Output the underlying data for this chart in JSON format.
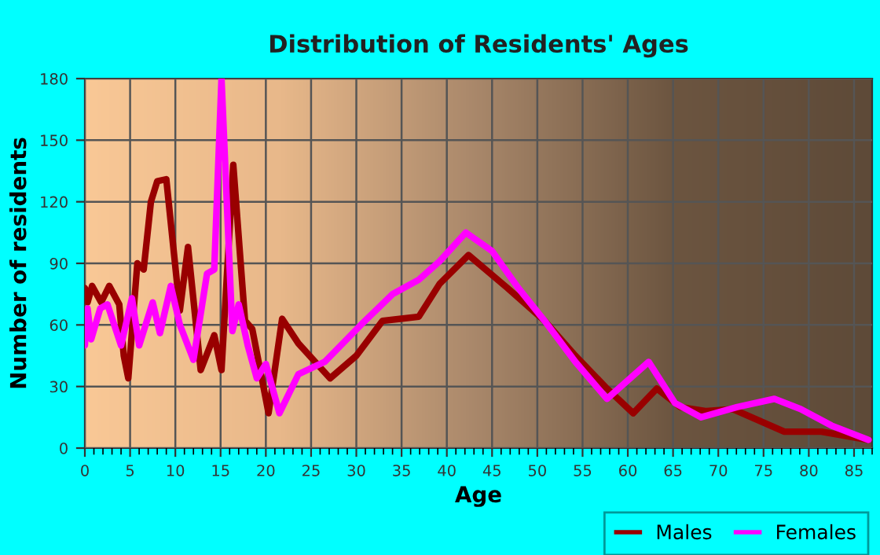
{
  "chart_data": {
    "type": "line",
    "title": "Distribution of Residents' Ages",
    "xlabel": "Age",
    "ylabel": "Number of residents",
    "xlim": [
      0,
      87
    ],
    "xticks": [
      0,
      5,
      10,
      15,
      20,
      25,
      30,
      35,
      40,
      45,
      50,
      55,
      60,
      65,
      70,
      75,
      80,
      85
    ],
    "ylim": [
      0,
      180
    ],
    "yticks": [
      0,
      30,
      60,
      90,
      120,
      150,
      180
    ],
    "grid": true,
    "legend": "bottom right",
    "line_style": "solid",
    "marker": "none",
    "series": [
      {
        "name": "Males",
        "color": "#990000",
        "x": [
          0,
          0.3,
          0.8,
          1.8,
          2.7,
          3.8,
          4.3,
          4.8,
          5.8,
          6.5,
          7.3,
          8.0,
          9.0,
          10.5,
          11.4,
          12.8,
          14.3,
          15.1,
          16.4,
          17.7,
          18.5,
          20.3,
          21.8,
          23.6,
          27.1,
          30,
          32.9,
          36.9,
          39.2,
          42.4,
          46.7,
          50.8,
          54.2,
          57.7,
          60.6,
          63.2,
          65.8,
          68.7,
          71.6,
          77.3,
          81.4,
          86.6
        ],
        "values": [
          78,
          71,
          79,
          71,
          79,
          70,
          45,
          34,
          90,
          87,
          120,
          130,
          131,
          67,
          98,
          38,
          55,
          38,
          138,
          62,
          58,
          17,
          63,
          51,
          34,
          45,
          62,
          64,
          80,
          94,
          78,
          62,
          45,
          29,
          17,
          29,
          20,
          18,
          19,
          8,
          8,
          4
        ]
      },
      {
        "name": "Females",
        "color": "#ff00ff",
        "x": [
          0,
          0.3,
          0.7,
          1.7,
          2.5,
          4.0,
          5.2,
          6.0,
          7.5,
          8.3,
          9.5,
          10.5,
          12.0,
          13.5,
          14.3,
          15.1,
          16.3,
          17.0,
          18.0,
          19.0,
          20.0,
          21.5,
          23.6,
          26.5,
          30.5,
          34,
          36.9,
          39.2,
          42.1,
          45,
          47.9,
          50.8,
          54.2,
          57.7,
          60,
          62.3,
          65.2,
          68.1,
          72.1,
          76.2,
          79.1,
          82.5,
          86.6
        ],
        "values": [
          50,
          68,
          53,
          68,
          70,
          50,
          73,
          50,
          71,
          56,
          79,
          60,
          43,
          85,
          87,
          180,
          57,
          70,
          50,
          34,
          41,
          17,
          36,
          42,
          60,
          75,
          82,
          91,
          105,
          96,
          78,
          62,
          42,
          24,
          33,
          42,
          22,
          15,
          20,
          24,
          19,
          11,
          4
        ]
      }
    ]
  }
}
